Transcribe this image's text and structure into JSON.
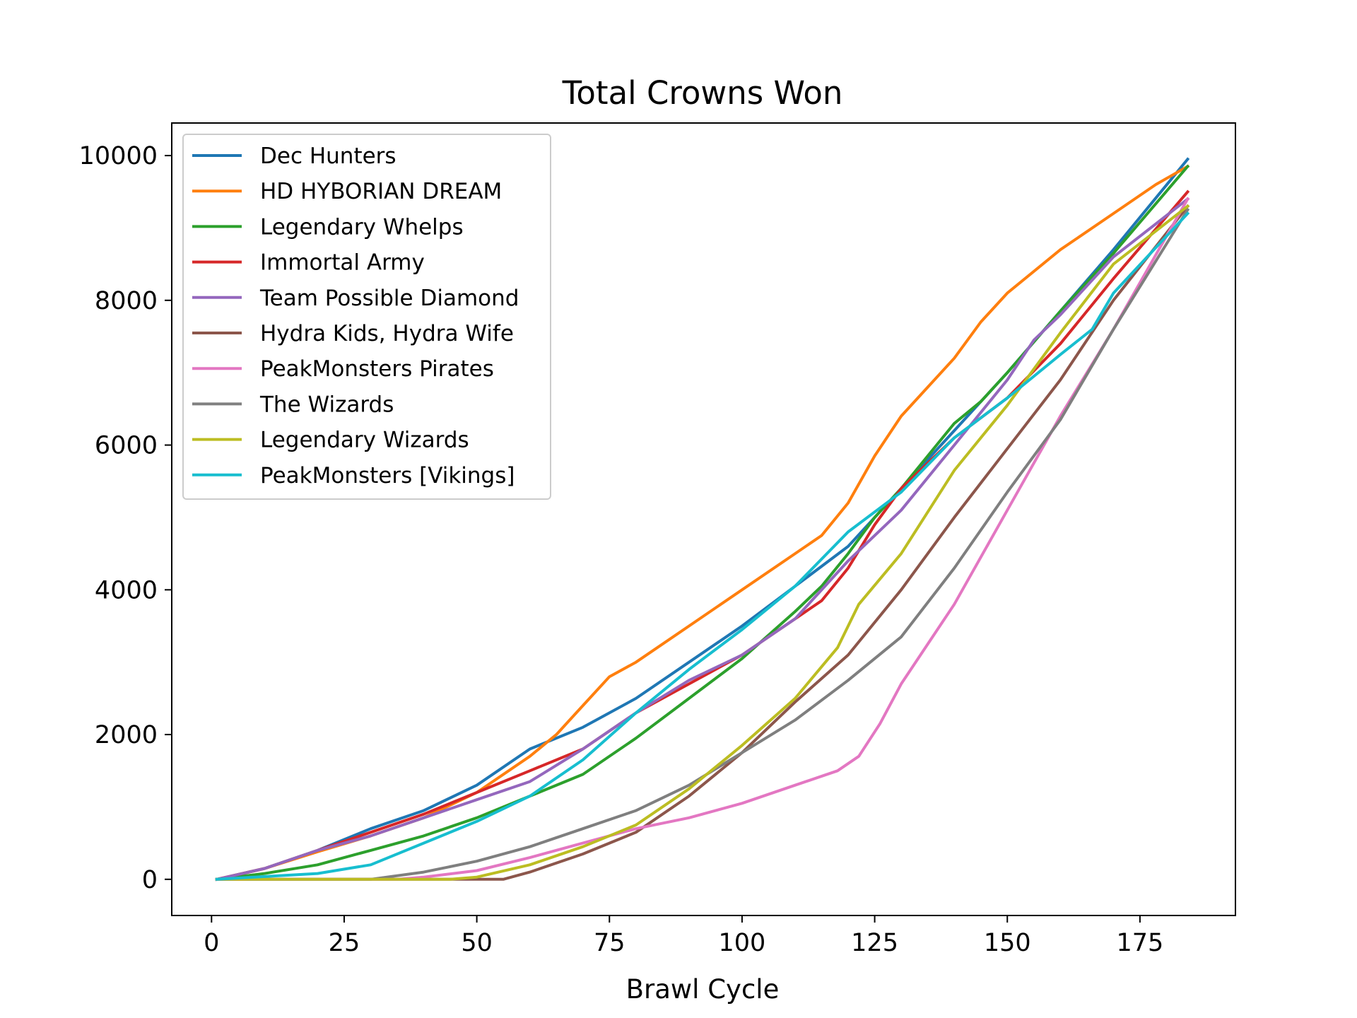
{
  "chart_data": {
    "type": "line",
    "title": "Total Crowns Won",
    "xlabel": "Brawl Cycle",
    "ylabel": "",
    "xlim": [
      -7.5,
      193
    ],
    "ylim": [
      -500,
      10450
    ],
    "xticks": [
      0,
      25,
      50,
      75,
      100,
      125,
      150,
      175
    ],
    "yticks": [
      0,
      2000,
      4000,
      6000,
      8000,
      10000
    ],
    "grid": false,
    "legend_position": "upper-left",
    "series": [
      {
        "name": "Dec Hunters",
        "color": "#1f77b4",
        "x": [
          1,
          10,
          20,
          30,
          40,
          50,
          60,
          70,
          80,
          90,
          100,
          110,
          120,
          130,
          140,
          150,
          160,
          170,
          184
        ],
        "y": [
          0,
          150,
          400,
          700,
          950,
          1300,
          1800,
          2100,
          2500,
          3000,
          3500,
          4050,
          4600,
          5400,
          6200,
          7000,
          7850,
          8700,
          9950
        ]
      },
      {
        "name": "HD HYBORIAN DREAM",
        "color": "#ff7f0e",
        "x": [
          1,
          10,
          20,
          30,
          40,
          50,
          60,
          65,
          70,
          75,
          80,
          90,
          100,
          110,
          115,
          120,
          125,
          130,
          140,
          145,
          150,
          160,
          170,
          178,
          184
        ],
        "y": [
          0,
          150,
          380,
          600,
          850,
          1200,
          1700,
          2000,
          2400,
          2800,
          3000,
          3500,
          4000,
          4500,
          4750,
          5200,
          5850,
          6400,
          7200,
          7700,
          8100,
          8700,
          9200,
          9600,
          9850
        ]
      },
      {
        "name": "Legendary Whelps",
        "color": "#2ca02c",
        "x": [
          1,
          10,
          20,
          30,
          40,
          50,
          60,
          70,
          80,
          90,
          100,
          110,
          115,
          120,
          125,
          130,
          140,
          145,
          150,
          160,
          170,
          184
        ],
        "y": [
          0,
          80,
          200,
          400,
          600,
          850,
          1150,
          1450,
          1950,
          2500,
          3050,
          3700,
          4050,
          4500,
          5000,
          5400,
          6300,
          6600,
          7000,
          7850,
          8650,
          9850
        ]
      },
      {
        "name": "Immortal Army",
        "color": "#d62728",
        "x": [
          1,
          10,
          20,
          30,
          40,
          50,
          60,
          70,
          80,
          90,
          100,
          110,
          115,
          120,
          125,
          130,
          140,
          150,
          160,
          170,
          184
        ],
        "y": [
          0,
          150,
          400,
          650,
          900,
          1200,
          1500,
          1800,
          2300,
          2700,
          3100,
          3600,
          3850,
          4300,
          4900,
          5400,
          6100,
          6650,
          7400,
          8300,
          9500
        ]
      },
      {
        "name": "Team Possible Diamond",
        "color": "#9467bd",
        "x": [
          1,
          10,
          20,
          30,
          40,
          50,
          60,
          70,
          80,
          90,
          100,
          110,
          120,
          130,
          140,
          150,
          155,
          160,
          170,
          184
        ],
        "y": [
          0,
          150,
          400,
          600,
          850,
          1100,
          1350,
          1800,
          2300,
          2750,
          3100,
          3600,
          4400,
          5100,
          6000,
          6900,
          7450,
          7800,
          8600,
          9400
        ]
      },
      {
        "name": "Hydra Kids, Hydra Wife",
        "color": "#8c564b",
        "x": [
          1,
          50,
          55,
          60,
          70,
          80,
          90,
          100,
          110,
          120,
          130,
          140,
          150,
          160,
          170,
          184
        ],
        "y": [
          0,
          0,
          0,
          100,
          350,
          650,
          1150,
          1750,
          2450,
          3100,
          4000,
          5000,
          5950,
          6900,
          8000,
          9300
        ]
      },
      {
        "name": "PeakMonsters Pirates",
        "color": "#e377c2",
        "x": [
          1,
          35,
          40,
          50,
          60,
          70,
          80,
          90,
          100,
          110,
          118,
          122,
          126,
          130,
          140,
          150,
          160,
          170,
          184
        ],
        "y": [
          0,
          0,
          30,
          120,
          300,
          500,
          700,
          850,
          1050,
          1300,
          1500,
          1700,
          2150,
          2700,
          3800,
          5100,
          6400,
          7600,
          9400
        ]
      },
      {
        "name": "The Wizards",
        "color": "#7f7f7f",
        "x": [
          1,
          30,
          40,
          50,
          60,
          70,
          80,
          90,
          100,
          110,
          120,
          130,
          140,
          150,
          160,
          170,
          184
        ],
        "y": [
          0,
          0,
          100,
          250,
          450,
          700,
          950,
          1300,
          1750,
          2200,
          2750,
          3350,
          4300,
          5350,
          6350,
          7600,
          9250
        ]
      },
      {
        "name": "Legendary Wizards",
        "color": "#bcbd22",
        "x": [
          1,
          45,
          50,
          60,
          70,
          80,
          90,
          100,
          110,
          118,
          122,
          130,
          140,
          150,
          160,
          170,
          184
        ],
        "y": [
          0,
          0,
          30,
          200,
          450,
          750,
          1250,
          1850,
          2500,
          3200,
          3800,
          4500,
          5650,
          6550,
          7550,
          8500,
          9300
        ]
      },
      {
        "name": "PeakMonsters [Vikings]",
        "color": "#17becf",
        "x": [
          1,
          20,
          30,
          40,
          50,
          60,
          70,
          80,
          90,
          100,
          110,
          120,
          130,
          140,
          150,
          160,
          166,
          170,
          184
        ],
        "y": [
          0,
          80,
          200,
          500,
          800,
          1150,
          1650,
          2300,
          2900,
          3450,
          4050,
          4800,
          5350,
          6100,
          6650,
          7250,
          7600,
          8100,
          9200
        ]
      }
    ]
  }
}
